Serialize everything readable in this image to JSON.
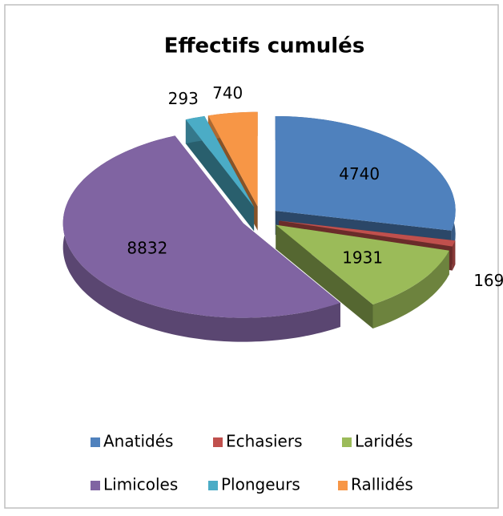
{
  "chart_data": {
    "type": "pie3d",
    "title": "Effectifs cumulés",
    "categories": [
      "Anatidés",
      "Echasiers",
      "Laridés",
      "Limicoles",
      "Plongeurs",
      "Rallidés"
    ],
    "values": [
      4740,
      169,
      1931,
      8832,
      293,
      740
    ],
    "colors": [
      "#4f81bd",
      "#c0504d",
      "#9bbb59",
      "#8064a2",
      "#4bacc6",
      "#f79646"
    ],
    "exploded": true,
    "legend": "bottom"
  }
}
